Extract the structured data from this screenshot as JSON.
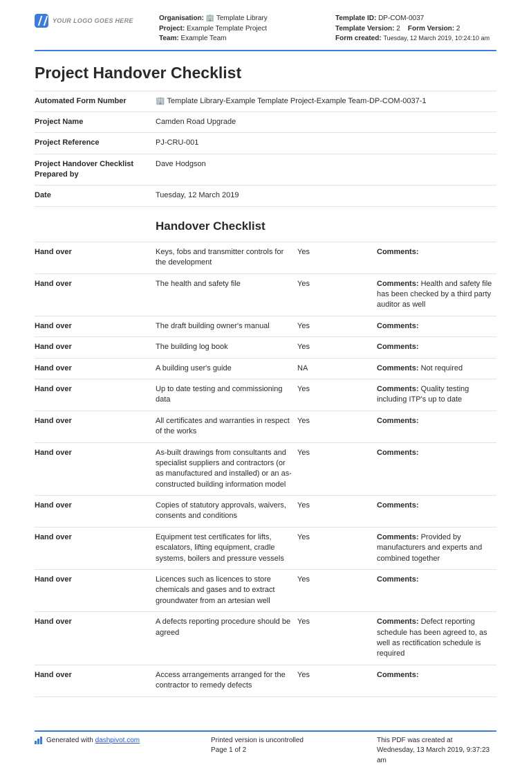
{
  "logo_placeholder": "YOUR LOGO GOES HERE",
  "header": {
    "left": {
      "org_label": "Organisation:",
      "org_value": "🏢 Template Library",
      "project_label": "Project:",
      "project_value": "Example Template Project",
      "team_label": "Team:",
      "team_value": "Example Team"
    },
    "right": {
      "tid_label": "Template ID:",
      "tid_value": "DP-COM-0037",
      "tver_label": "Template Version:",
      "tver_value": "2",
      "fver_label": "Form Version:",
      "fver_value": "2",
      "created_label": "Form created:",
      "created_value": "Tuesday, 12 March 2019, 10:24:10 am"
    }
  },
  "title": "Project Handover Checklist",
  "info": [
    {
      "k": "Automated Form Number",
      "v": "🏢 Template Library-Example Template Project-Example Team-DP-COM-0037-1"
    },
    {
      "k": "Project Name",
      "v": "Camden Road Upgrade"
    },
    {
      "k": "Project Reference",
      "v": "PJ-CRU-001"
    },
    {
      "k": "Project Handover Checklist Prepared by",
      "v": "Dave Hodgson"
    },
    {
      "k": "Date",
      "v": "Tuesday, 12 March 2019"
    }
  ],
  "section_title": "Handover Checklist",
  "hand_over_label": "Hand over",
  "comments_label": "Comments:",
  "items": [
    {
      "desc": "Keys, fobs and transmitter controls for the development",
      "status": "Yes",
      "comment": ""
    },
    {
      "desc": "The health and safety file",
      "status": "Yes",
      "comment": "Health and safety file has been checked by a third party auditor as well"
    },
    {
      "desc": "The draft building owner's manual",
      "status": "Yes",
      "comment": ""
    },
    {
      "desc": "The building log book",
      "status": "Yes",
      "comment": ""
    },
    {
      "desc": "A building user's guide",
      "status": "NA",
      "comment": "Not required"
    },
    {
      "desc": "Up to date testing and commissioning data",
      "status": "Yes",
      "comment": "Quality testing including ITP's up to date"
    },
    {
      "desc": "All certificates and warranties in respect of the works",
      "status": "Yes",
      "comment": ""
    },
    {
      "desc": "As-built drawings from consultants and specialist suppliers and contractors (or as manufactured and installed) or an as-constructed building information model",
      "status": "Yes",
      "comment": ""
    },
    {
      "desc": "Copies of statutory approvals, waivers, consents and conditions",
      "status": "Yes",
      "comment": ""
    },
    {
      "desc": "Equipment test certificates for lifts, escalators, lifting equipment, cradle systems, boilers and pressure vessels",
      "status": "Yes",
      "comment": "Provided by manufacturers and experts and combined together"
    },
    {
      "desc": "Licences such as licences to store chemicals and gases and to extract groundwater from an artesian well",
      "status": "Yes",
      "comment": ""
    },
    {
      "desc": "A defects reporting procedure should be agreed",
      "status": "Yes",
      "comment": "Defect reporting schedule has been agreed to, as well as rectification schedule is required"
    },
    {
      "desc": "Access arrangements arranged for the contractor to remedy defects",
      "status": "Yes",
      "comment": ""
    }
  ],
  "footer": {
    "gen_prefix": "Generated with ",
    "gen_link": "dashpivot.com",
    "mid_l1": "Printed version is uncontrolled",
    "mid_l2": "Page 1 of 2",
    "right_l1": "This PDF was created at",
    "right_l2": "Wednesday, 13 March 2019, 9:37:23 am"
  }
}
